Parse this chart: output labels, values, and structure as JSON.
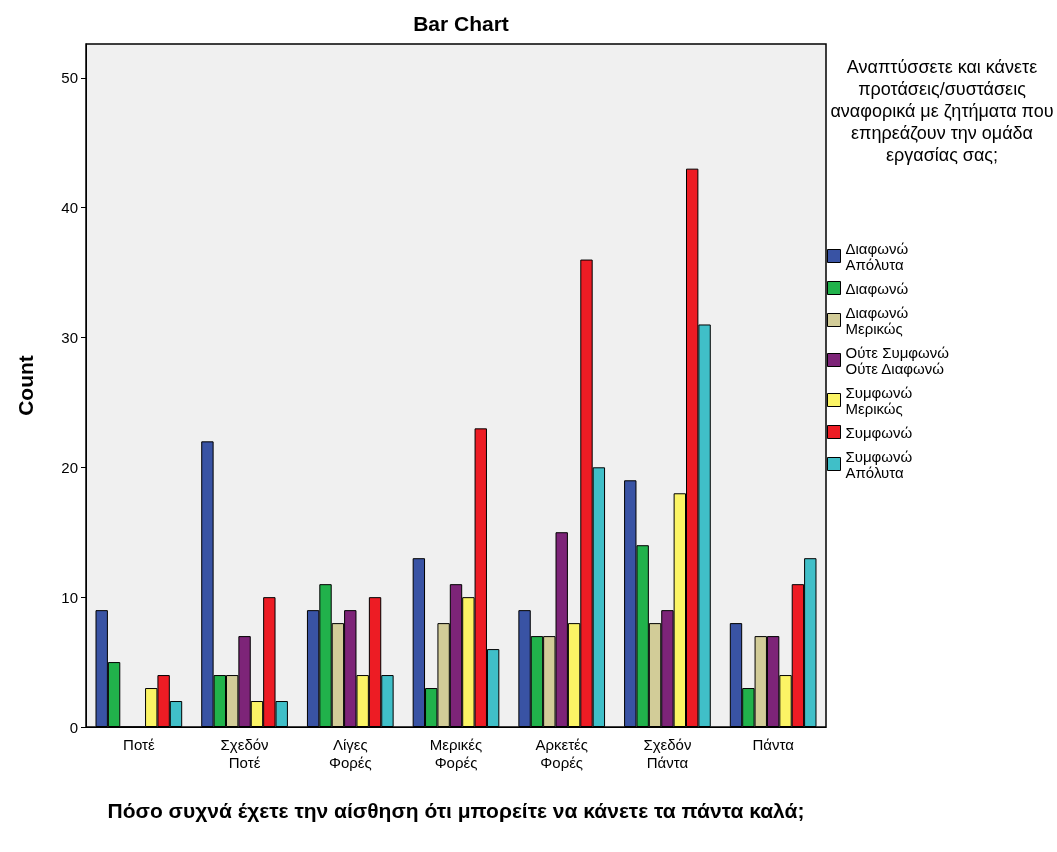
{
  "chart_data": {
    "type": "bar",
    "title": "Bar Chart",
    "xlabel": "Πόσο συχνά έχετε την αίσθηση ότι μπορείτε να κάνετε τα πάντα καλά;",
    "ylabel": "Count",
    "legend_title": "Αναπτύσσετε και κάνετε προτάσεις/συστάσεις αναφορικά με ζητήματα που επηρεάζουν την ομάδα εργασίας σας;",
    "categories": [
      "Ποτέ",
      "Σχεδόν Ποτέ",
      "Λίγες Φορές",
      "Μερικές Φορές",
      "Αρκετές Φορές",
      "Σχεδόν Πάντα",
      "Πάντα"
    ],
    "series": [
      {
        "name": "Διαφωνώ Απόλυτα",
        "color": "#3953a4",
        "values": [
          9,
          22,
          9,
          13,
          9,
          19,
          8
        ]
      },
      {
        "name": "Διαφωνώ",
        "color": "#21b24b",
        "values": [
          5,
          4,
          11,
          3,
          7,
          14,
          3
        ]
      },
      {
        "name": "Διαφωνώ Μερικώς",
        "color": "#d2cc98",
        "values": [
          0,
          4,
          8,
          8,
          7,
          8,
          7
        ]
      },
      {
        "name": "Ούτε Συμφωνώ Ούτε Διαφωνώ",
        "color": "#7d2478",
        "values": [
          0,
          7,
          9,
          11,
          15,
          9,
          7
        ]
      },
      {
        "name": "Συμφωνώ Μερικώς",
        "color": "#fbf465",
        "values": [
          3,
          2,
          4,
          10,
          8,
          18,
          4
        ]
      },
      {
        "name": "Συμφωνώ",
        "color": "#ed1c24",
        "values": [
          4,
          10,
          10,
          23,
          36,
          43,
          11
        ]
      },
      {
        "name": "Συμφωνώ Απόλυτα",
        "color": "#40bfc8",
        "values": [
          2,
          2,
          4,
          6,
          20,
          31,
          13
        ]
      }
    ],
    "ylim": [
      0,
      52.6
    ],
    "yticks": [
      0,
      10,
      20,
      30,
      40,
      50
    ],
    "legend": "right"
  }
}
